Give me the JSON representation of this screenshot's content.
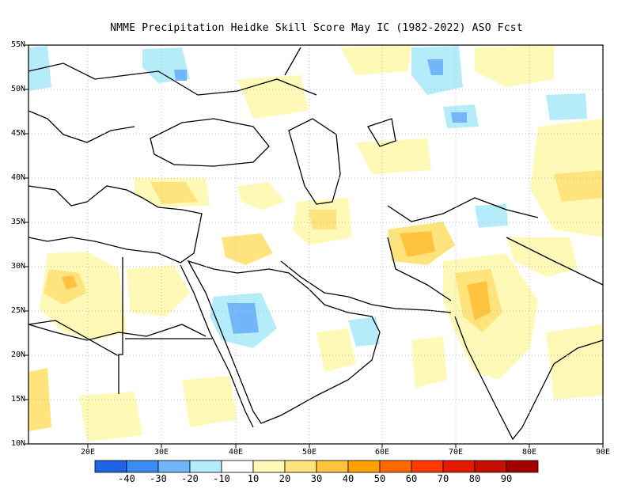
{
  "title": "NMME  Precipitation Heidke Skill Score May IC (1982-2022) ASO Fcst",
  "lat_labels": [
    "55N",
    "50N",
    "45N",
    "40N",
    "35N",
    "30N",
    "25N",
    "20N",
    "15N",
    "10N"
  ],
  "lon_labels": [
    "20E",
    "30E",
    "40E",
    "50E",
    "60E",
    "70E",
    "80E",
    "90E"
  ],
  "colorbar": {
    "colors": [
      "#1f63e6",
      "#3a8cf0",
      "#71b6f8",
      "#b5ecf9",
      "#ffffff",
      "#fff9b8",
      "#ffe47d",
      "#ffc33e",
      "#ffa200",
      "#ff6a00",
      "#ff3a00",
      "#e41b00",
      "#c50f00",
      "#a30000"
    ],
    "labels": [
      "-40",
      "-30",
      "-20",
      "-10",
      "10",
      "20",
      "30",
      "40",
      "50",
      "60",
      "70",
      "80",
      "90"
    ]
  },
  "icons": {
    "coastline": "coastline-icon"
  }
}
